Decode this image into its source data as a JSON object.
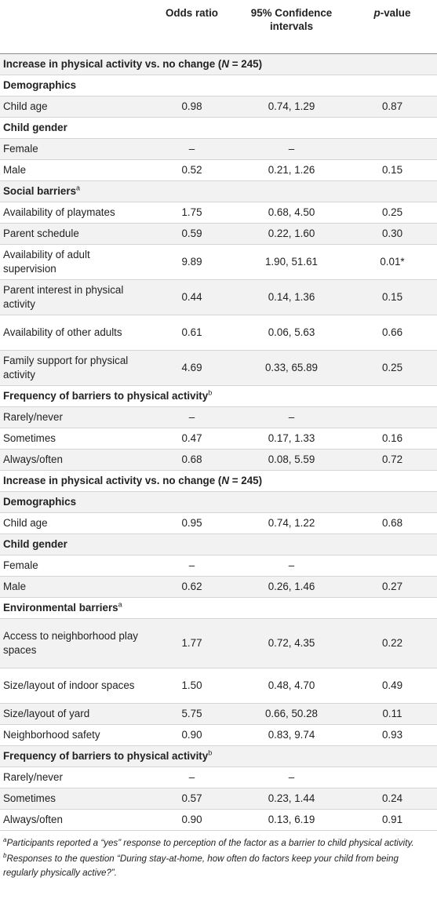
{
  "header": {
    "col1": "",
    "col2": "Odds ratio",
    "col3_line1": "95% Confidence",
    "col3_line2": "intervals",
    "col4_italic": "p",
    "col4_rest": "-value"
  },
  "rows": [
    {
      "type": "section",
      "pre": "Increase in physical activity vs. no change (",
      "italic": "N",
      "post": " = 245)",
      "h": 1
    },
    {
      "type": "section",
      "pre": "Demographics",
      "h": 1
    },
    {
      "type": "data",
      "label": "Child age",
      "or": "0.98",
      "ci": "0.74, 1.29",
      "p": "0.87",
      "h": 1
    },
    {
      "type": "section",
      "pre": "Child gender",
      "h": 1
    },
    {
      "type": "data",
      "label": "Female",
      "or": "–",
      "ci": "–",
      "p": "",
      "h": 1
    },
    {
      "type": "data",
      "label": "Male",
      "or": "0.52",
      "ci": "0.21, 1.26",
      "p": "0.15",
      "h": 1
    },
    {
      "type": "section",
      "pre": "Social barriers",
      "sup": "a",
      "h": 1
    },
    {
      "type": "data",
      "label": "Availability of playmates",
      "or": "1.75",
      "ci": "0.68, 4.50",
      "p": "0.25",
      "h": 1
    },
    {
      "type": "data",
      "label": "Parent schedule",
      "or": "0.59",
      "ci": "0.22, 1.60",
      "p": "0.30",
      "h": 1
    },
    {
      "type": "data",
      "label": "Availability of adult supervision",
      "or": "9.89",
      "ci": "1.90, 51.61",
      "p": "0.01*",
      "h": 2
    },
    {
      "type": "data",
      "label": "Parent interest in physical activity",
      "or": "0.44",
      "ci": "0.14, 1.36",
      "p": "0.15",
      "h": 2
    },
    {
      "type": "data",
      "label": "Availability of other adults",
      "or": "0.61",
      "ci": "0.06, 5.63",
      "p": "0.66",
      "h": 2
    },
    {
      "type": "data",
      "label": "Family support for physical activity",
      "or": "4.69",
      "ci": "0.33, 65.89",
      "p": "0.25",
      "h": 2
    },
    {
      "type": "section",
      "pre": "Frequency of barriers to physical activity",
      "sup": "b",
      "h": 1
    },
    {
      "type": "data",
      "label": "Rarely/never",
      "or": "–",
      "ci": "–",
      "p": "",
      "h": 1
    },
    {
      "type": "data",
      "label": "Sometimes",
      "or": "0.47",
      "ci": "0.17, 1.33",
      "p": "0.16",
      "h": 1
    },
    {
      "type": "data",
      "label": "Always/often",
      "or": "0.68",
      "ci": "0.08, 5.59",
      "p": "0.72",
      "h": 1
    },
    {
      "type": "section",
      "pre": "Increase in physical activity vs. no change (",
      "italic": "N",
      "post": " = 245)",
      "h": 1
    },
    {
      "type": "section",
      "pre": "Demographics",
      "h": 1
    },
    {
      "type": "data",
      "label": "Child age",
      "or": "0.95",
      "ci": "0.74, 1.22",
      "p": "0.68",
      "h": 1
    },
    {
      "type": "section",
      "pre": "Child gender",
      "h": 1
    },
    {
      "type": "data",
      "label": "Female",
      "or": "–",
      "ci": "–",
      "p": "",
      "h": 1
    },
    {
      "type": "data",
      "label": "Male",
      "or": "0.62",
      "ci": "0.26, 1.46",
      "p": "0.27",
      "h": 1
    },
    {
      "type": "section",
      "pre": "Environmental barriers",
      "sup": "a",
      "h": 1
    },
    {
      "type": "data",
      "label": "Access to neighborhood play spaces",
      "or": "1.77",
      "ci": "0.72, 4.35",
      "p": "0.22",
      "h": 3
    },
    {
      "type": "data",
      "label": "Size/layout of indoor spaces",
      "or": "1.50",
      "ci": "0.48, 4.70",
      "p": "0.49",
      "h": 2
    },
    {
      "type": "data",
      "label": "Size/layout of yard",
      "or": "5.75",
      "ci": "0.66, 50.28",
      "p": "0.11",
      "h": 1
    },
    {
      "type": "data",
      "label": "Neighborhood safety",
      "or": "0.90",
      "ci": "0.83, 9.74",
      "p": "0.93",
      "h": 1
    },
    {
      "type": "section",
      "pre": "Frequency of barriers to physical activity",
      "sup": "b",
      "h": 1
    },
    {
      "type": "data",
      "label": "Rarely/never",
      "or": "–",
      "ci": "–",
      "p": "",
      "h": 1
    },
    {
      "type": "data",
      "label": "Sometimes",
      "or": "0.57",
      "ci": "0.23, 1.44",
      "p": "0.24",
      "h": 1
    },
    {
      "type": "data",
      "label": "Always/often",
      "or": "0.90",
      "ci": "0.13, 6.19",
      "p": "0.91",
      "h": 1
    }
  ],
  "footnotes": [
    {
      "mark": "a",
      "text": "Participants reported a “yes” response to perception of the factor as a barrier to child physical activity."
    },
    {
      "mark": "b",
      "text": "Responses to the question “During stay-at-home, how often do factors keep your child from being regularly physically active?”."
    }
  ]
}
